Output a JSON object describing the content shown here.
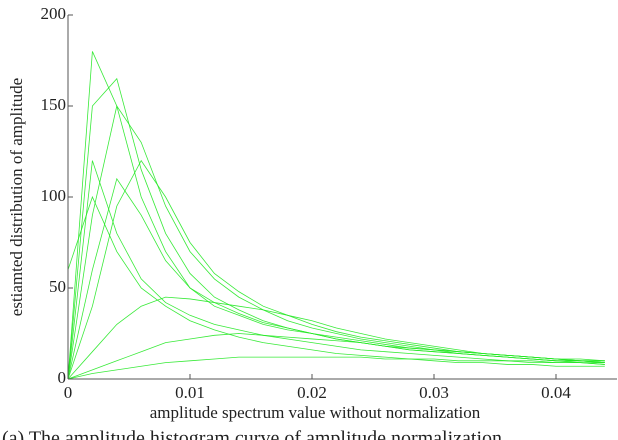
{
  "chart_data": {
    "type": "line",
    "x_label": "amplitude spectrum value without normalization",
    "y_label": "estiamted distribution of amplitude",
    "caption": "(a) The amplitude histogram curve of amplitude normalization",
    "x": [
      0,
      0.002,
      0.004,
      0.006,
      0.008,
      0.01,
      0.012,
      0.014,
      0.016,
      0.018,
      0.02,
      0.022,
      0.024,
      0.026,
      0.028,
      0.03,
      0.032,
      0.034,
      0.036,
      0.038,
      0.04,
      0.042,
      0.044
    ],
    "series": [
      {
        "color": "#22e822",
        "values": [
          0,
          180,
          150,
          100,
          70,
          50,
          40,
          35,
          30,
          27,
          25,
          22,
          20,
          18,
          16,
          15,
          14,
          13,
          12,
          11,
          10,
          10,
          9
        ]
      },
      {
        "color": "#22e822",
        "values": [
          0,
          90,
          150,
          130,
          95,
          70,
          55,
          45,
          38,
          32,
          28,
          25,
          22,
          20,
          18,
          16,
          15,
          14,
          13,
          12,
          11,
          10,
          10
        ]
      },
      {
        "color": "#22e822",
        "values": [
          0,
          40,
          95,
          120,
          100,
          75,
          58,
          48,
          40,
          35,
          30,
          26,
          23,
          21,
          19,
          17,
          15,
          14,
          13,
          12,
          11,
          10,
          9
        ]
      },
      {
        "color": "#22e822",
        "values": [
          0,
          120,
          80,
          55,
          42,
          35,
          30,
          27,
          24,
          22,
          20,
          18,
          16,
          15,
          14,
          13,
          12,
          11,
          10,
          10,
          9,
          9,
          8
        ]
      },
      {
        "color": "#22e822",
        "values": [
          0,
          15,
          30,
          40,
          45,
          44,
          42,
          40,
          38,
          35,
          32,
          28,
          25,
          22,
          20,
          18,
          16,
          14,
          13,
          12,
          11,
          10,
          10
        ]
      },
      {
        "color": "#22e822",
        "values": [
          0,
          5,
          10,
          15,
          20,
          22,
          24,
          25,
          24,
          23,
          22,
          21,
          20,
          18,
          17,
          16,
          14,
          13,
          12,
          11,
          10,
          9,
          9
        ]
      },
      {
        "color": "#22e822",
        "values": [
          0,
          3,
          5,
          7,
          9,
          10,
          11,
          12,
          12,
          12,
          12,
          12,
          12,
          11,
          11,
          11,
          10,
          10,
          10,
          9,
          9,
          9,
          8
        ]
      },
      {
        "color": "#22e822",
        "values": [
          60,
          100,
          70,
          50,
          40,
          32,
          27,
          23,
          20,
          18,
          16,
          14,
          13,
          12,
          11,
          10,
          9,
          9,
          8,
          8,
          7,
          7,
          7
        ]
      },
      {
        "color": "#22e822",
        "values": [
          0,
          150,
          165,
          115,
          80,
          58,
          45,
          38,
          32,
          28,
          25,
          22,
          20,
          18,
          16,
          15,
          14,
          13,
          12,
          11,
          10,
          10,
          9
        ]
      },
      {
        "color": "#22e822",
        "values": [
          0,
          60,
          110,
          90,
          65,
          50,
          42,
          36,
          31,
          28,
          25,
          23,
          21,
          19,
          17,
          16,
          15,
          14,
          13,
          12,
          11,
          11,
          10
        ]
      }
    ],
    "xlim": [
      0,
      0.045
    ],
    "xticks": [
      0,
      0.01,
      0.02,
      0.03,
      0.04
    ],
    "ylim": [
      0,
      200
    ],
    "yticks": [
      0,
      50,
      100,
      150,
      200
    ],
    "grid": false
  }
}
